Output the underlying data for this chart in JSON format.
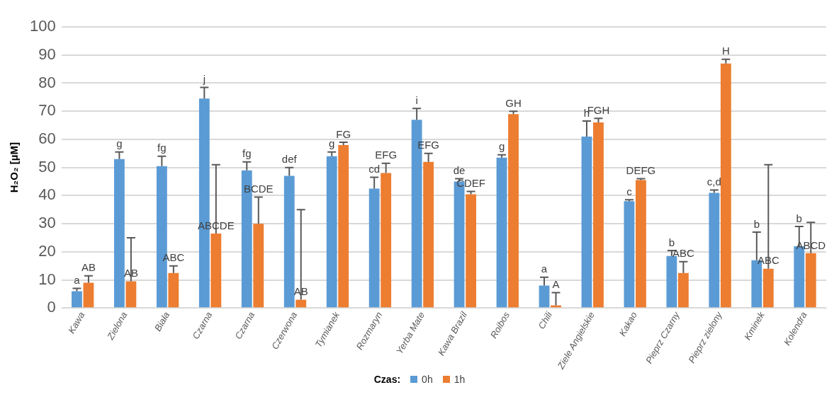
{
  "chart_data": {
    "type": "bar",
    "ylabel": "H₂O₂ [µM]",
    "legend_title": "Czas:",
    "legend": "bottom",
    "grid": "y",
    "categories": [
      "Kawa",
      "Zielona",
      "Biała",
      "Czarna",
      "Czarna",
      "Czerwona",
      "Tymianek",
      "Rozmaryn",
      "Yerba Mate",
      "Kawa Brazil",
      "Roibos",
      "Chili",
      "Ziele Angielskie",
      "Kakao",
      "Pieprz Czarny",
      "Pieprz zielony",
      "Kminek",
      "Kolendra"
    ],
    "ylim": [
      0,
      100
    ],
    "yticks": [
      0,
      10,
      20,
      30,
      40,
      50,
      60,
      70,
      80,
      90,
      100
    ],
    "series": [
      {
        "name": "0h",
        "color": "#5b9bd5",
        "values": [
          6,
          53,
          50.5,
          74.5,
          49,
          47,
          54,
          42.5,
          67,
          45,
          53.5,
          8,
          61,
          38,
          18.5,
          41,
          17,
          22
        ],
        "errors": [
          [
            6,
            7
          ],
          [
            53,
            55.5
          ],
          [
            50.5,
            54
          ],
          [
            74.5,
            78.5
          ],
          [
            49,
            52
          ],
          [
            47,
            50
          ],
          [
            54,
            55.5
          ],
          [
            42.5,
            46.5
          ],
          [
            67,
            71
          ],
          [
            45,
            46
          ],
          [
            53.5,
            54.5
          ],
          [
            8,
            11
          ],
          [
            61,
            66.5
          ],
          [
            38,
            38.5
          ],
          [
            18.5,
            20.5
          ],
          [
            41,
            42
          ],
          [
            17,
            27
          ],
          [
            22,
            29
          ]
        ],
        "value_labels": [
          "a",
          "g",
          "fg",
          "j",
          "fg",
          "def",
          "g",
          "cd",
          "i",
          "de",
          "g",
          "a",
          "h",
          "c",
          "b",
          "c,d",
          "b",
          "b"
        ]
      },
      {
        "name": "1h",
        "color": "#ed7d31",
        "values": [
          9,
          9.5,
          12.5,
          26.5,
          30,
          3,
          58,
          48,
          52,
          40.5,
          69,
          1,
          66,
          45.5,
          12.5,
          87,
          14,
          19.5
        ],
        "errors": [
          [
            9,
            11.5
          ],
          [
            9.5,
            25
          ],
          [
            12.5,
            15
          ],
          [
            26.5,
            51
          ],
          [
            30,
            39.5
          ],
          [
            3,
            35
          ],
          [
            58,
            59
          ],
          [
            48,
            51.5
          ],
          [
            52,
            55
          ],
          [
            40.5,
            41.5
          ],
          [
            69,
            70
          ],
          [
            1,
            5.5
          ],
          [
            66,
            67.5
          ],
          [
            45.5,
            46
          ],
          [
            12.5,
            16.5
          ],
          [
            87,
            88.5
          ],
          [
            14,
            51
          ],
          [
            19.5,
            30.5
          ]
        ],
        "value_labels": [
          "AB",
          "AB",
          "ABC",
          "ABCDE",
          "BCDE",
          "AB",
          "FG",
          "EFG",
          "EFG",
          "CDEF",
          "GH",
          "A",
          "FGH",
          "DEFG",
          "ABC",
          "H",
          "ABC",
          "ABCD"
        ]
      }
    ]
  }
}
